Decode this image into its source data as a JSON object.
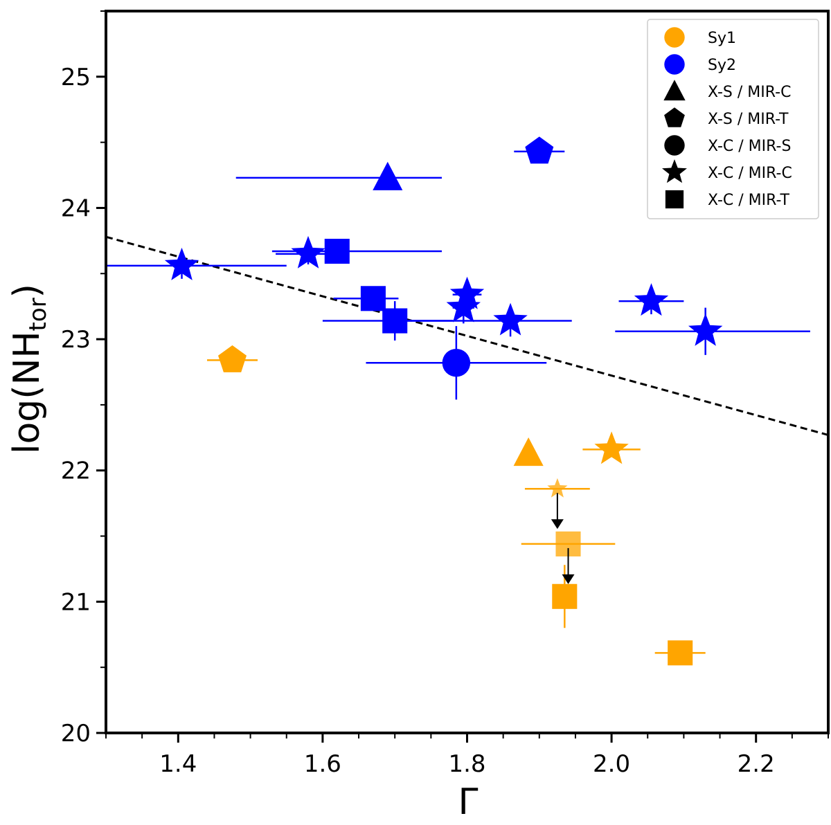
{
  "chart_data": {
    "type": "scatter",
    "xlabel": "Γ",
    "ylabel_main": "log(NH",
    "ylabel_sub": "tor",
    "ylabel_close": ")",
    "xlim": [
      1.3,
      2.3
    ],
    "ylim": [
      20,
      25.5
    ],
    "xticks": [
      1.4,
      1.6,
      1.8,
      2.0,
      2.2
    ],
    "xtick_labels": [
      "1.4",
      "1.6",
      "1.8",
      "2.0",
      "2.2"
    ],
    "yticks": [
      20,
      21,
      22,
      23,
      24,
      25
    ],
    "ytick_labels": [
      "20",
      "21",
      "22",
      "23",
      "24",
      "25"
    ],
    "colors": {
      "Sy1": "#FFA500",
      "Sy2": "#0000FF",
      "black": "#000000"
    },
    "legend": {
      "position": "top-right",
      "entries": [
        {
          "label": "Sy1",
          "marker": "circle",
          "color": "#FFA500"
        },
        {
          "label": "Sy2",
          "marker": "circle",
          "color": "#0000FF"
        },
        {
          "label": "X-S / MIR-C",
          "marker": "triangle",
          "color": "#000000"
        },
        {
          "label": "X-S / MIR-T",
          "marker": "pentagon",
          "color": "#000000"
        },
        {
          "label": "X-C / MIR-S",
          "marker": "circle",
          "color": "#000000"
        },
        {
          "label": "X-C / MIR-C",
          "marker": "star",
          "color": "#000000"
        },
        {
          "label": "X-C / MIR-T",
          "marker": "square",
          "color": "#000000"
        }
      ]
    },
    "fit_line": {
      "style": "dashed",
      "x": [
        1.3,
        2.3
      ],
      "y": [
        23.78,
        22.27
      ]
    },
    "points": [
      {
        "class": "Sy2",
        "marker": "star",
        "x": 1.405,
        "y": 23.56,
        "xerr": [
          0.105,
          0.145
        ],
        "yerr": [
          0.1,
          0.1
        ]
      },
      {
        "class": "Sy2",
        "marker": "star",
        "x": 1.58,
        "y": 23.65,
        "xerr": [
          0.045,
          0.055
        ],
        "yerr": [
          0.08,
          0.08
        ]
      },
      {
        "class": "Sy2",
        "marker": "square",
        "x": 1.62,
        "y": 23.67,
        "xerr": [
          0.09,
          0.145
        ],
        "yerr": [
          0,
          0
        ]
      },
      {
        "class": "Sy2",
        "marker": "triangle",
        "x": 1.69,
        "y": 24.23,
        "xerr": [
          0.21,
          0.075
        ],
        "yerr": [
          0,
          0
        ]
      },
      {
        "class": "Sy2",
        "marker": "pentagon",
        "x": 1.9,
        "y": 24.43,
        "xerr": [
          0.035,
          0.035
        ],
        "yerr": [
          0,
          0
        ]
      },
      {
        "class": "Sy2",
        "marker": "square",
        "x": 1.67,
        "y": 23.31,
        "xerr": [
          0.055,
          0.035
        ],
        "yerr": [
          0,
          0
        ]
      },
      {
        "class": "Sy2",
        "marker": "square",
        "x": 1.7,
        "y": 23.14,
        "xerr": [
          0.1,
          0.08
        ],
        "yerr": [
          0.15,
          0.15
        ]
      },
      {
        "class": "Sy2",
        "marker": "star",
        "x": 1.8,
        "y": 23.34,
        "xerr": [
          0.02,
          0.02
        ],
        "yerr": [
          0.12,
          0.08
        ]
      },
      {
        "class": "Sy2",
        "marker": "star",
        "x": 1.795,
        "y": 23.24,
        "xerr": [
          0.015,
          0.015
        ],
        "yerr": [
          0.12,
          0.12
        ]
      },
      {
        "class": "Sy2",
        "marker": "star",
        "x": 1.86,
        "y": 23.14,
        "xerr": [
          0.16,
          0.085
        ],
        "yerr": [
          0.12,
          0.12
        ]
      },
      {
        "class": "Sy2",
        "marker": "circle",
        "x": 1.785,
        "y": 22.82,
        "xerr": [
          0.125,
          0.125
        ],
        "yerr": [
          0.28,
          0.28
        ]
      },
      {
        "class": "Sy2",
        "marker": "star",
        "x": 2.055,
        "y": 23.29,
        "xerr": [
          0.045,
          0.045
        ],
        "yerr": [
          0.1,
          0.1
        ]
      },
      {
        "class": "Sy2",
        "marker": "star",
        "x": 2.13,
        "y": 23.06,
        "xerr": [
          0.125,
          0.145
        ],
        "yerr": [
          0.18,
          0.18
        ]
      },
      {
        "class": "Sy1",
        "marker": "pentagon",
        "x": 1.475,
        "y": 22.84,
        "xerr": [
          0.035,
          0.035
        ],
        "yerr": [
          0,
          0
        ]
      },
      {
        "class": "Sy1",
        "marker": "triangle",
        "x": 1.885,
        "y": 22.13,
        "xerr": [
          0,
          0
        ],
        "yerr": [
          0,
          0
        ]
      },
      {
        "class": "Sy1",
        "marker": "star",
        "x": 2.0,
        "y": 22.16,
        "xerr": [
          0.04,
          0.04
        ],
        "yerr": [
          0,
          0
        ]
      },
      {
        "class": "Sy1",
        "marker": "star",
        "x": 1.925,
        "y": 21.86,
        "xerr": [
          0.045,
          0.045
        ],
        "yerr": [
          0,
          0
        ],
        "small": true,
        "upper_limit": true,
        "faded": true
      },
      {
        "class": "Sy1",
        "marker": "square",
        "x": 1.94,
        "y": 21.44,
        "xerr": [
          0.065,
          0.065
        ],
        "yerr": [
          0,
          0
        ],
        "upper_limit": true,
        "faded": true
      },
      {
        "class": "Sy1",
        "marker": "square",
        "x": 1.935,
        "y": 21.04,
        "xerr": [
          0,
          0
        ],
        "yerr": [
          0.24,
          0.24
        ]
      },
      {
        "class": "Sy1",
        "marker": "square",
        "x": 2.095,
        "y": 20.61,
        "xerr": [
          0.035,
          0.035
        ],
        "yerr": [
          0,
          0
        ]
      }
    ]
  }
}
